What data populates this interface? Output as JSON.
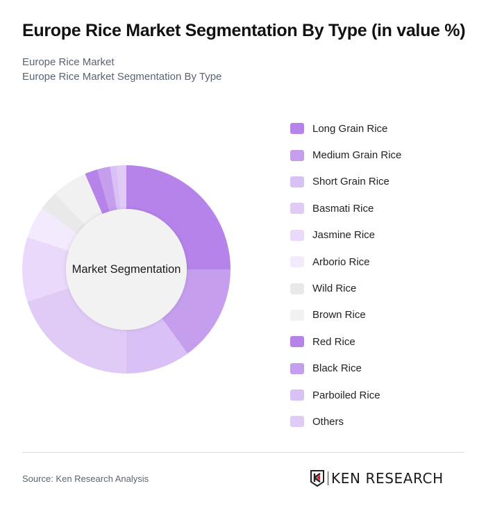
{
  "header": {
    "title": "Europe Rice Market Segmentation By Type (in value %)",
    "subtitle_line1": "Europe Rice Market",
    "subtitle_line2": "Europe Rice Market Segmentation By Type"
  },
  "chart_data": {
    "type": "pie",
    "variant": "donut",
    "title": "Europe Rice Market Segmentation By Type (in value %)",
    "center_label": "Market Segmentation",
    "legend_position": "right",
    "categories": [
      "Long Grain Rice",
      "Medium Grain Rice",
      "Short Grain Rice",
      "Basmati Rice",
      "Jasmine Rice",
      "Arborio Rice",
      "Wild Rice",
      "Brown Rice",
      "Red Rice",
      "Black Rice",
      "Parboiled Rice",
      "Others"
    ],
    "values": [
      25,
      15,
      10,
      20,
      10,
      5,
      3,
      5.5,
      2,
      2,
      1,
      1.5
    ],
    "colors": [
      "#B583EA",
      "#C59EEE",
      "#D9C0F5",
      "#E0CBF7",
      "#EAD9FA",
      "#F3EBFD",
      "#E9E9E9",
      "#F1F1F1",
      "#B583EA",
      "#C59EEE",
      "#D9C0F5",
      "#E0CBF7"
    ],
    "unit": "%"
  },
  "footer": {
    "source": "Source: Ken Research Analysis",
    "logo_text": "KEN RESEARCH"
  }
}
